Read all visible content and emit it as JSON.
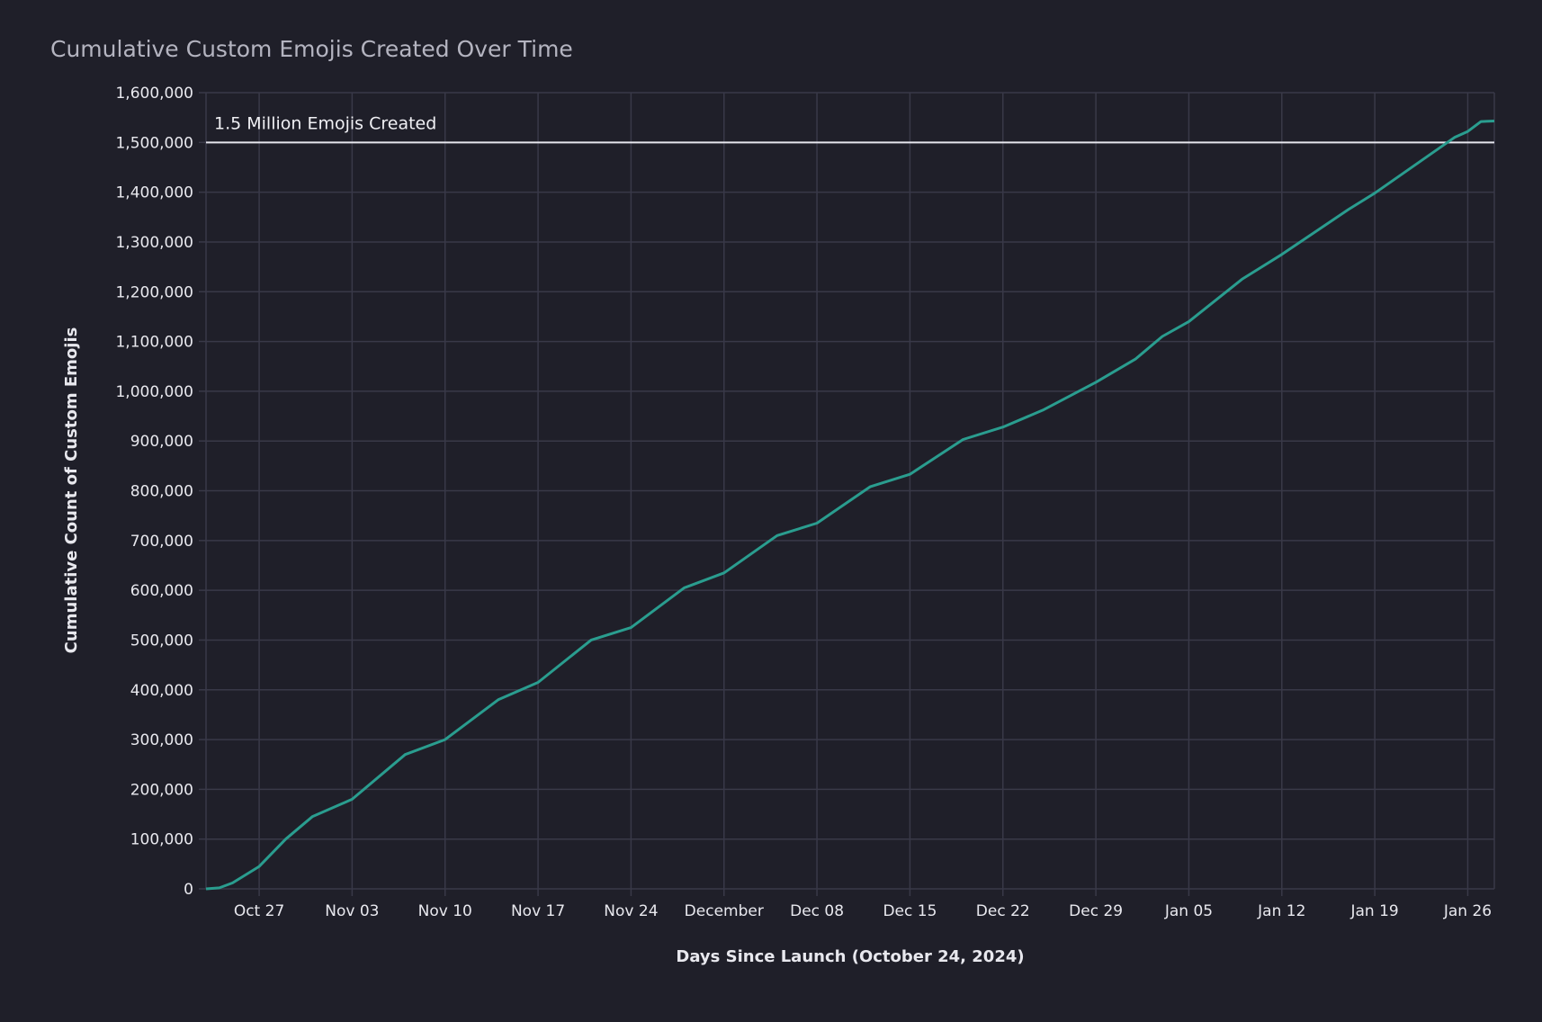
{
  "chart_data": {
    "type": "line",
    "title": "Cumulative Custom Emojis Created Over Time",
    "xlabel": "Days Since Launch (October 24, 2024)",
    "ylabel": "Cumulative Count of Custom Emojis",
    "xlim": [
      "2024-10-23",
      "2025-01-28"
    ],
    "ylim": [
      0,
      1600000
    ],
    "grid": true,
    "line_color": "#2a9d8f",
    "background": "#1f1f29",
    "x_ticks": [
      {
        "date": "2024-10-27",
        "label": "Oct 27"
      },
      {
        "date": "2024-11-03",
        "label": "Nov 03"
      },
      {
        "date": "2024-11-10",
        "label": "Nov 10"
      },
      {
        "date": "2024-11-17",
        "label": "Nov 17"
      },
      {
        "date": "2024-11-24",
        "label": "Nov 24"
      },
      {
        "date": "2024-12-01",
        "label": "December"
      },
      {
        "date": "2024-12-08",
        "label": "Dec 08"
      },
      {
        "date": "2024-12-15",
        "label": "Dec 15"
      },
      {
        "date": "2024-12-22",
        "label": "Dec 22"
      },
      {
        "date": "2024-12-29",
        "label": "Dec 29"
      },
      {
        "date": "2025-01-05",
        "label": "Jan 05"
      },
      {
        "date": "2025-01-12",
        "label": "Jan 12"
      },
      {
        "date": "2025-01-19",
        "label": "Jan 19"
      },
      {
        "date": "2025-01-26",
        "label": "Jan 26"
      }
    ],
    "y_ticks": [
      {
        "value": 0,
        "label": "0"
      },
      {
        "value": 100000,
        "label": "100,000"
      },
      {
        "value": 200000,
        "label": "200,000"
      },
      {
        "value": 300000,
        "label": "300,000"
      },
      {
        "value": 400000,
        "label": "400,000"
      },
      {
        "value": 500000,
        "label": "500,000"
      },
      {
        "value": 600000,
        "label": "600,000"
      },
      {
        "value": 700000,
        "label": "700,000"
      },
      {
        "value": 800000,
        "label": "800,000"
      },
      {
        "value": 900000,
        "label": "900,000"
      },
      {
        "value": 1000000,
        "label": "1,000,000"
      },
      {
        "value": 1100000,
        "label": "1,100,000"
      },
      {
        "value": 1200000,
        "label": "1,200,000"
      },
      {
        "value": 1300000,
        "label": "1,300,000"
      },
      {
        "value": 1400000,
        "label": "1,400,000"
      },
      {
        "value": 1500000,
        "label": "1,500,000"
      },
      {
        "value": 1600000,
        "label": "1,600,000"
      }
    ],
    "reference_line": {
      "value": 1500000,
      "label": "1.5 Million Emojis Created",
      "color": "#e6e6ee"
    },
    "series": [
      {
        "x": [
          "2024-10-23",
          "2024-10-24",
          "2024-10-25",
          "2024-10-27",
          "2024-10-29",
          "2024-10-31",
          "2024-11-03",
          "2024-11-07",
          "2024-11-10",
          "2024-11-14",
          "2024-11-17",
          "2024-11-21",
          "2024-11-24",
          "2024-11-28",
          "2024-12-01",
          "2024-12-05",
          "2024-12-08",
          "2024-12-12",
          "2024-12-15",
          "2024-12-19",
          "2024-12-22",
          "2024-12-25",
          "2024-12-29",
          "2025-01-01",
          "2025-01-03",
          "2025-01-05",
          "2025-01-09",
          "2025-01-12",
          "2025-01-17",
          "2025-01-19",
          "2025-01-25",
          "2025-01-26",
          "2025-01-27",
          "2025-01-28"
        ],
        "y": [
          0,
          2000,
          12000,
          45000,
          100000,
          145000,
          180000,
          270000,
          300000,
          380000,
          415000,
          500000,
          525000,
          605000,
          635000,
          710000,
          735000,
          808000,
          833000,
          903000,
          928000,
          962000,
          1018000,
          1065000,
          1110000,
          1140000,
          1225000,
          1275000,
          1365000,
          1398000,
          1510000,
          1522000,
          1542000,
          1543000
        ]
      }
    ]
  }
}
